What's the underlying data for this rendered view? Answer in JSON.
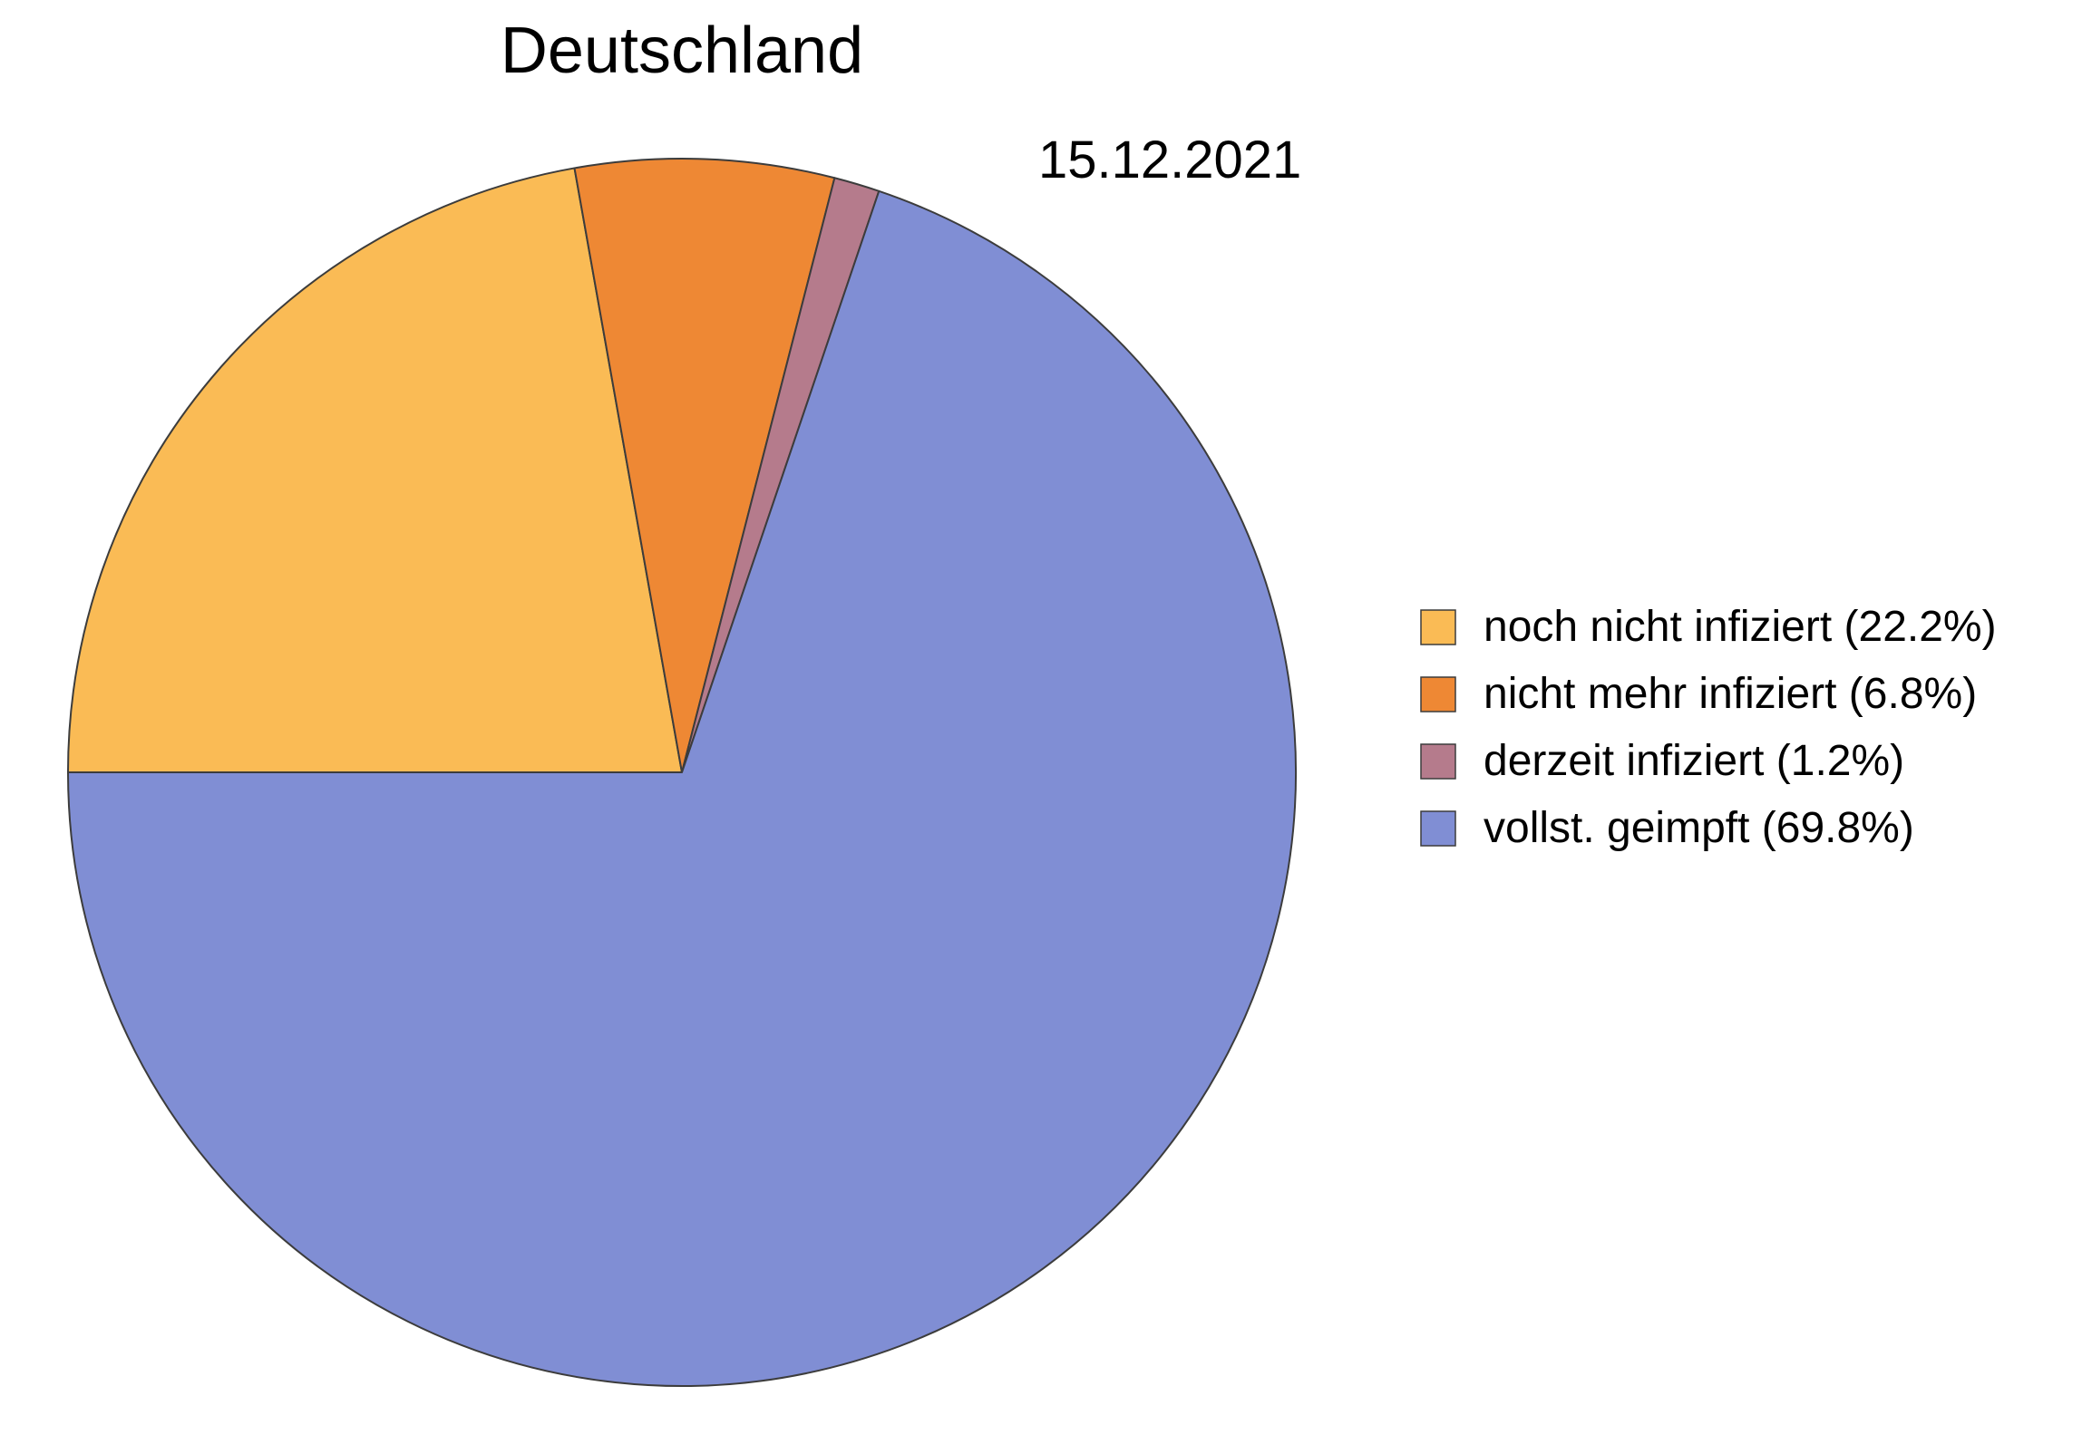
{
  "chart_data": {
    "type": "pie",
    "title": "Deutschland",
    "subtitle": "15.12.2021",
    "start_angle_deg": 180,
    "direction": "clockwise",
    "legend_position": "right",
    "slices": [
      {
        "label": "noch nicht infiziert (22.2%)",
        "value": 22.2,
        "color": "#FABB55"
      },
      {
        "label": "nicht mehr infiziert (6.8%)",
        "value": 6.8,
        "color": "#EE8834"
      },
      {
        "label": "derzeit infiziert (1.2%)",
        "value": 1.2,
        "color": "#B57B8C"
      },
      {
        "label": "vollst. geimpft (69.8%)",
        "value": 69.8,
        "color": "#808ED4"
      }
    ],
    "edge_color": "#3C3C3C"
  }
}
